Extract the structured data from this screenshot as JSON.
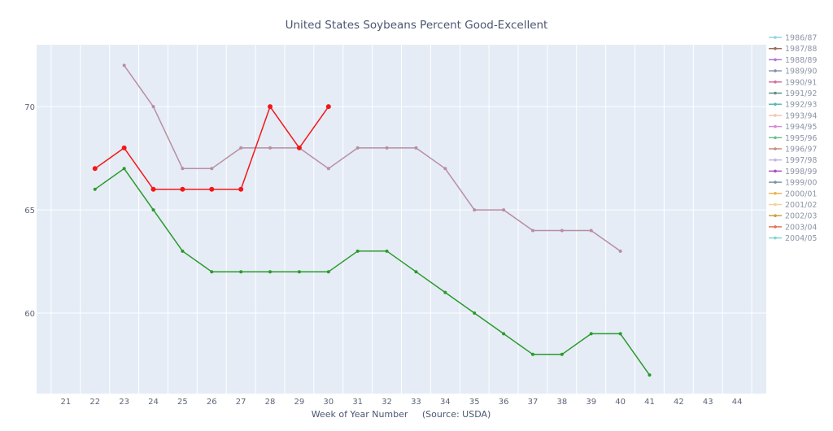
{
  "chart_data": {
    "type": "line",
    "title": "United States Soybeans Percent Good-Excellent",
    "xlabel": "Week of Year Number     (Source: USDA)",
    "ylabel": "",
    "xlim": [
      20,
      45
    ],
    "ylim": [
      56.1,
      73
    ],
    "x_ticks": [
      21,
      22,
      23,
      24,
      25,
      26,
      27,
      28,
      29,
      30,
      31,
      32,
      33,
      34,
      35,
      36,
      37,
      38,
      39,
      40,
      41,
      42,
      43,
      44
    ],
    "y_ticks": [
      60,
      65,
      70
    ],
    "grid": true,
    "legend_position": "right",
    "legend": [
      {
        "name": "1986/87",
        "color": "#8fd3e8"
      },
      {
        "name": "1987/88",
        "color": "#9b6a5a"
      },
      {
        "name": "1988/89",
        "color": "#b278cf"
      },
      {
        "name": "1989/90",
        "color": "#8a8fa8"
      },
      {
        "name": "1990/91",
        "color": "#d46f9a"
      },
      {
        "name": "1991/92",
        "color": "#5f8f87"
      },
      {
        "name": "1992/93",
        "color": "#5bb7b0"
      },
      {
        "name": "1993/94",
        "color": "#f2c4b5"
      },
      {
        "name": "1994/95",
        "color": "#d08ad6"
      },
      {
        "name": "1995/96",
        "color": "#6bbf8a"
      },
      {
        "name": "1996/97",
        "color": "#c98a80"
      },
      {
        "name": "1997/98",
        "color": "#c7b3e3"
      },
      {
        "name": "1998/99",
        "color": "#a64fbf"
      },
      {
        "name": "1999/00",
        "color": "#7d94a8"
      },
      {
        "name": "2000/01",
        "color": "#f0b24a"
      },
      {
        "name": "2001/02",
        "color": "#f2d29b"
      },
      {
        "name": "2002/03",
        "color": "#c9a23f"
      },
      {
        "name": "2003/04",
        "color": "#e8704f"
      },
      {
        "name": "2004/05",
        "color": "#7fd6cf"
      }
    ],
    "series": [
      {
        "color": "#b88ea0",
        "marker_size": 3,
        "x": [
          23,
          24,
          25,
          26,
          27,
          28,
          29,
          30,
          31,
          32,
          33,
          34,
          35,
          36,
          37,
          38,
          39,
          40
        ],
        "values": [
          72,
          70,
          67,
          67,
          68,
          68,
          68,
          67,
          68,
          68,
          68,
          67,
          65,
          65,
          64,
          64,
          64,
          63
        ]
      },
      {
        "color": "#2a9a2a",
        "marker_size": 3,
        "x": [
          22,
          23,
          24,
          25,
          26,
          27,
          28,
          29,
          30,
          31,
          32,
          33,
          34,
          35,
          36,
          37,
          38,
          39,
          40,
          41
        ],
        "values": [
          66,
          67,
          65,
          63,
          62,
          62,
          62,
          62,
          62,
          63,
          63,
          62,
          61,
          60,
          59,
          58,
          58,
          59,
          59,
          57
        ]
      },
      {
        "color": "#f21818",
        "marker_size": 5,
        "x": [
          22,
          23,
          24,
          25,
          26,
          27,
          28,
          29,
          30
        ],
        "values": [
          67,
          68,
          66,
          66,
          66,
          66,
          70,
          68,
          70
        ]
      }
    ]
  }
}
